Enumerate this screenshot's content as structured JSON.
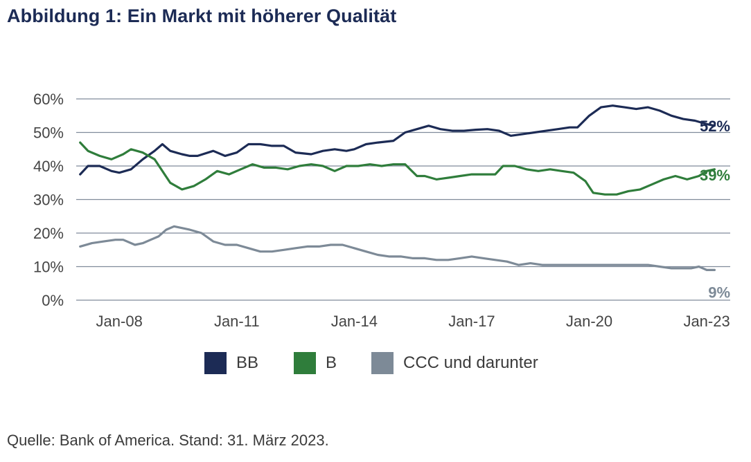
{
  "title": "Abbildung 1: Ein Markt mit höherer Qualität",
  "source": "Quelle: Bank of America. Stand: 31. März 2023.",
  "chart_data": {
    "type": "line",
    "title": "Abbildung 1: Ein Markt mit höherer Qualität",
    "y_ticks": [
      "0%",
      "10%",
      "20%",
      "30%",
      "40%",
      "50%",
      "60%"
    ],
    "ylim": [
      0,
      60
    ],
    "x_ticks": [
      {
        "label": "Jan-08",
        "x": 2008.0
      },
      {
        "label": "Jan-11",
        "x": 2011.0
      },
      {
        "label": "Jan-14",
        "x": 2014.0
      },
      {
        "label": "Jan-17",
        "x": 2017.0
      },
      {
        "label": "Jan-20",
        "x": 2020.0
      },
      {
        "label": "Jan-23",
        "x": 2023.0
      }
    ],
    "xlim": [
      2006.9,
      2023.6
    ],
    "grid": true,
    "legend_position": "bottom",
    "series": [
      {
        "name": "BB",
        "color": "#1c2b55",
        "end_label": "52%",
        "x": [
          2007.0,
          2007.2,
          2007.5,
          2007.8,
          2008.0,
          2008.3,
          2008.6,
          2008.9,
          2009.1,
          2009.3,
          2009.6,
          2009.8,
          2010.0,
          2010.4,
          2010.7,
          2011.0,
          2011.3,
          2011.6,
          2011.9,
          2012.2,
          2012.5,
          2012.9,
          2013.2,
          2013.5,
          2013.8,
          2014.0,
          2014.3,
          2014.6,
          2015.0,
          2015.3,
          2015.6,
          2015.9,
          2016.2,
          2016.5,
          2016.8,
          2017.1,
          2017.4,
          2017.7,
          2018.0,
          2018.3,
          2018.6,
          2018.9,
          2019.2,
          2019.5,
          2019.7,
          2020.0,
          2020.3,
          2020.6,
          2020.9,
          2021.2,
          2021.5,
          2021.8,
          2022.1,
          2022.4,
          2022.7,
          2023.0,
          2023.2
        ],
        "y": [
          37.5,
          40,
          40,
          38.5,
          38,
          39,
          42,
          44.5,
          46.5,
          44.5,
          43.5,
          43,
          43,
          44.5,
          43,
          44,
          46.5,
          46.5,
          46,
          46,
          44,
          43.5,
          44.5,
          45,
          44.5,
          45,
          46.5,
          47,
          47.5,
          50,
          51,
          52,
          51,
          50.5,
          50.5,
          50.8,
          51,
          50.5,
          49,
          49.5,
          50,
          50.5,
          51,
          51.5,
          51.5,
          55,
          57.5,
          58,
          57.5,
          57,
          57.5,
          56.5,
          55,
          54,
          53.5,
          52.5,
          52
        ]
      },
      {
        "name": "B",
        "color": "#2f7d3b",
        "end_label": "39%",
        "x": [
          2007.0,
          2007.2,
          2007.5,
          2007.8,
          2008.1,
          2008.3,
          2008.6,
          2008.9,
          2009.1,
          2009.3,
          2009.6,
          2009.9,
          2010.2,
          2010.5,
          2010.8,
          2011.1,
          2011.4,
          2011.7,
          2012.0,
          2012.3,
          2012.6,
          2012.9,
          2013.2,
          2013.5,
          2013.8,
          2014.1,
          2014.4,
          2014.7,
          2015.0,
          2015.3,
          2015.6,
          2015.8,
          2016.1,
          2016.4,
          2016.7,
          2017.0,
          2017.3,
          2017.6,
          2017.8,
          2018.1,
          2018.4,
          2018.7,
          2019.0,
          2019.3,
          2019.6,
          2019.9,
          2020.1,
          2020.4,
          2020.7,
          2021.0,
          2021.3,
          2021.6,
          2021.9,
          2022.2,
          2022.5,
          2022.8,
          2023.0,
          2023.2
        ],
        "y": [
          47,
          44.5,
          43,
          42,
          43.5,
          45,
          44,
          42,
          38.5,
          35,
          33,
          34,
          36,
          38.5,
          37.5,
          39,
          40.5,
          39.5,
          39.5,
          39,
          40,
          40.5,
          40,
          38.5,
          40,
          40,
          40.5,
          40,
          40.5,
          40.5,
          37,
          37,
          36,
          36.5,
          37,
          37.5,
          37.5,
          37.5,
          40,
          40,
          39,
          38.5,
          39,
          38.5,
          38,
          35.5,
          32,
          31.5,
          31.5,
          32.5,
          33,
          34.5,
          36,
          37,
          36,
          37,
          38.5,
          39
        ]
      },
      {
        "name": "CCC und darunter",
        "color": "#7d8a97",
        "end_label": "9%",
        "x": [
          2007.0,
          2007.3,
          2007.6,
          2007.9,
          2008.1,
          2008.4,
          2008.6,
          2008.8,
          2009.0,
          2009.2,
          2009.4,
          2009.6,
          2009.8,
          2010.1,
          2010.4,
          2010.7,
          2011.0,
          2011.3,
          2011.6,
          2011.9,
          2012.2,
          2012.5,
          2012.8,
          2013.1,
          2013.4,
          2013.7,
          2014.0,
          2014.3,
          2014.6,
          2014.9,
          2015.2,
          2015.5,
          2015.8,
          2016.1,
          2016.4,
          2016.7,
          2017.0,
          2017.3,
          2017.6,
          2017.9,
          2018.2,
          2018.5,
          2018.8,
          2019.1,
          2019.4,
          2019.7,
          2020.0,
          2020.3,
          2020.6,
          2020.9,
          2021.2,
          2021.5,
          2021.8,
          2022.1,
          2022.4,
          2022.6,
          2022.8,
          2023.0,
          2023.2
        ],
        "y": [
          16,
          17,
          17.5,
          18,
          18,
          16.5,
          17,
          18,
          19,
          21,
          22,
          21.5,
          21,
          20,
          17.5,
          16.5,
          16.5,
          15.5,
          14.5,
          14.5,
          15,
          15.5,
          16,
          16,
          16.5,
          16.5,
          15.5,
          14.5,
          13.5,
          13,
          13,
          12.5,
          12.5,
          12,
          12,
          12.5,
          13,
          12.5,
          12,
          11.5,
          10.5,
          11,
          10.5,
          10.5,
          10.5,
          10.5,
          10.5,
          10.5,
          10.5,
          10.5,
          10.5,
          10.5,
          10,
          9.5,
          9.5,
          9.5,
          10,
          9,
          9
        ]
      }
    ]
  }
}
